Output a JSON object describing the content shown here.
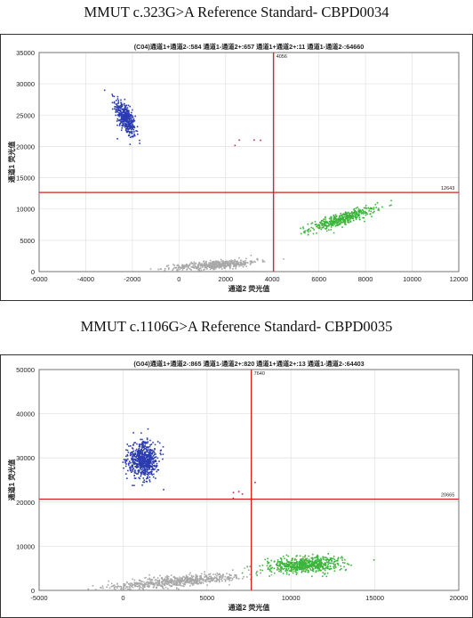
{
  "titles": {
    "top": "MMUT c.323G>A Reference Standard- CBPD0034",
    "bottom": "MMUT c.1106G>A Reference Standard- CBPD0035"
  },
  "chart_data": [
    {
      "type": "scatter",
      "header": "(C04)通道1+通道2-:584   通道1-通道2+:657   通道1+通道2+:11   通道1-通道2-:64660",
      "xlabel": "通道2 荧光值",
      "ylabel": "通道1 荧光值",
      "xlim": [
        -6000,
        12000
      ],
      "ylim": [
        0,
        35000
      ],
      "xticks": [
        -6000,
        -4000,
        -2000,
        0,
        2000,
        4000,
        6000,
        8000,
        10000,
        12000
      ],
      "yticks": [
        0,
        5000,
        10000,
        15000,
        20000,
        25000,
        30000,
        35000
      ],
      "threshold_x": 4056,
      "threshold_y": 12643,
      "threshold_x_label": "4056",
      "threshold_y_label": "12643",
      "threshold_color": "#d42020",
      "clusters": [
        {
          "name": "通道1+通道2-",
          "color": "#2a3cb0",
          "n": 420,
          "cx": -2300,
          "cy": 24500,
          "sx": 220,
          "sy": 1500,
          "corr": -0.65
        },
        {
          "name": "通道1-通道2+",
          "color": "#3cb43c",
          "n": 420,
          "cx": 7000,
          "cy": 8400,
          "sx": 700,
          "sy": 900,
          "corr": 0.85
        },
        {
          "name": "通道1-通道2-",
          "color": "#a8a8a8",
          "n": 500,
          "cx": 1600,
          "cy": 1100,
          "sx": 900,
          "sy": 400,
          "corr": 0.6
        },
        {
          "name": "通道1+通道2+",
          "color": "#c02850",
          "n": 4,
          "cx": 2600,
          "cy": 21000,
          "sx": 400,
          "sy": 800,
          "corr": 0
        }
      ]
    },
    {
      "type": "scatter",
      "header": "(G04)通道1+通道2-:865   通道1-通道2+:820   通道1+通道2+:13   通道1-通道2-:64403",
      "xlabel": "通道2 荧光值",
      "ylabel": "通道1 荧光值",
      "xlim": [
        -5000,
        20000
      ],
      "ylim": [
        0,
        50000
      ],
      "xticks": [
        -5000,
        0,
        5000,
        10000,
        15000,
        20000
      ],
      "yticks": [
        0,
        10000,
        20000,
        30000,
        40000,
        50000
      ],
      "threshold_x": 7640,
      "threshold_y": 20665,
      "threshold_x_label": "7640",
      "threshold_y_label": "20665",
      "threshold_color": "#d42020",
      "clusters": [
        {
          "name": "通道1+通道2-",
          "color": "#2a3cb0",
          "n": 650,
          "cx": 1200,
          "cy": 29500,
          "sx": 450,
          "sy": 2000,
          "corr": 0
        },
        {
          "name": "通道1-通道2+",
          "color": "#3cb43c",
          "n": 600,
          "cx": 10800,
          "cy": 5800,
          "sx": 1100,
          "sy": 900,
          "corr": 0.2
        },
        {
          "name": "通道1-通道2-",
          "color": "#a8a8a8",
          "n": 650,
          "cx": 3000,
          "cy": 2000,
          "sx": 2000,
          "sy": 900,
          "corr": 0.7
        },
        {
          "name": "通道1+通道2+",
          "color": "#c02850",
          "n": 5,
          "cx": 6800,
          "cy": 22500,
          "sx": 500,
          "sy": 700,
          "corr": 0
        }
      ]
    }
  ]
}
